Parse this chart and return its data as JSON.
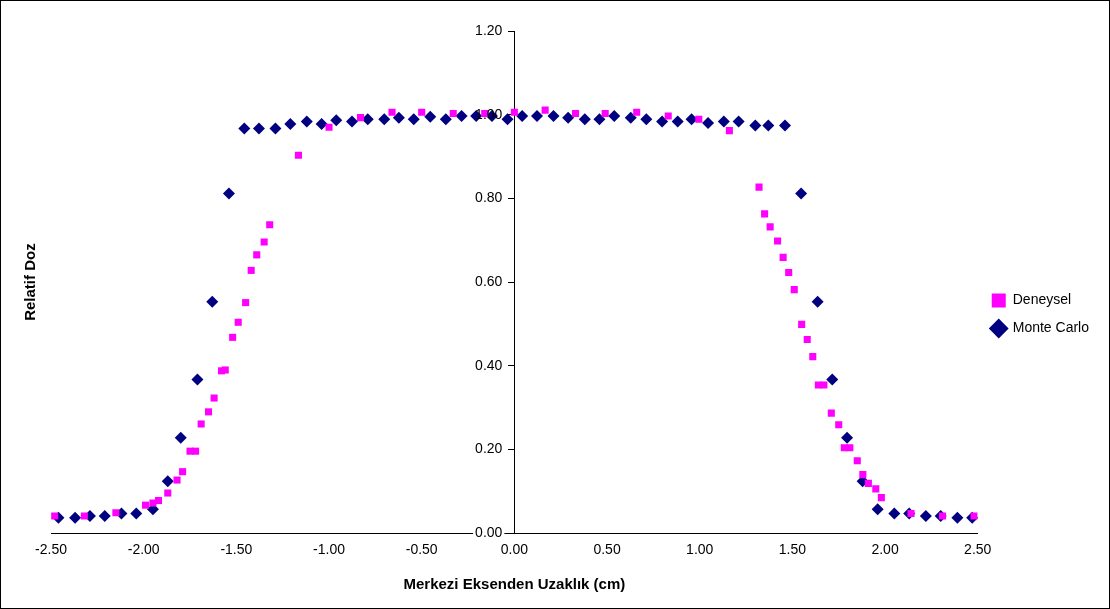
{
  "chart_data": {
    "type": "scatter",
    "xlabel": "Merkezi Eksenden Uzaklık (cm)",
    "ylabel": "Relatif Doz",
    "legend": "right",
    "grid": false,
    "xlim": [
      -2.5,
      2.5
    ],
    "ylim": [
      0,
      1.2
    ],
    "xticks": [
      {
        "value": -2.5,
        "label": "-2.50"
      },
      {
        "value": -2,
        "label": "-2.00"
      },
      {
        "value": -1.5,
        "label": "-1.50"
      },
      {
        "value": -1,
        "label": "-1.00"
      },
      {
        "value": -0.5,
        "label": "-0.50"
      },
      {
        "value": 0,
        "label": "0.00"
      },
      {
        "value": 0.5,
        "label": "0.50"
      },
      {
        "value": 1,
        "label": "1.00"
      },
      {
        "value": 1.5,
        "label": "1.50"
      },
      {
        "value": 2,
        "label": "2.00"
      },
      {
        "value": 2.5,
        "label": "2.50"
      }
    ],
    "yticks": [
      {
        "value": 0,
        "label": "0.00"
      },
      {
        "value": 0.2,
        "label": "0.20"
      },
      {
        "value": 0.4,
        "label": "0.40"
      },
      {
        "value": 0.6,
        "label": "0.60"
      },
      {
        "value": 0.8,
        "label": "0.80"
      },
      {
        "value": 1,
        "label": "1.00"
      },
      {
        "value": 1.2,
        "label": "1.20"
      }
    ],
    "series": [
      {
        "name": "Deneysel",
        "color": "#ff00ff",
        "marker": "square",
        "x": [
          -2.48,
          -2.32,
          -2.15,
          -1.99,
          -1.95,
          -1.92,
          -1.87,
          -1.82,
          -1.79,
          -1.75,
          -1.72,
          -1.69,
          -1.65,
          -1.62,
          -1.58,
          -1.56,
          -1.52,
          -1.49,
          -1.45,
          -1.42,
          -1.39,
          -1.35,
          -1.32,
          -1.165,
          -1.0,
          -0.83,
          -0.66,
          -0.5,
          -0.33,
          -0.16,
          0.0,
          0.166,
          0.33,
          0.49,
          0.66,
          0.83,
          0.995,
          1.16,
          1.32,
          1.35,
          1.38,
          1.42,
          1.45,
          1.48,
          1.51,
          1.55,
          1.58,
          1.61,
          1.64,
          1.67,
          1.71,
          1.75,
          1.78,
          1.81,
          1.85,
          1.88,
          1.91,
          1.95,
          1.98,
          2.14,
          2.31,
          2.48
        ],
        "values": [
          0.041,
          0.041,
          0.049,
          0.067,
          0.072,
          0.078,
          0.096,
          0.127,
          0.147,
          0.196,
          0.196,
          0.261,
          0.29,
          0.323,
          0.388,
          0.39,
          0.468,
          0.504,
          0.551,
          0.628,
          0.665,
          0.696,
          0.737,
          0.903,
          0.97,
          0.993,
          1.006,
          1.006,
          1.003,
          1.003,
          1.006,
          1.011,
          1.003,
          1.003,
          1.006,
          0.997,
          0.989,
          0.962,
          0.827,
          0.763,
          0.732,
          0.698,
          0.659,
          0.623,
          0.582,
          0.499,
          0.463,
          0.422,
          0.354,
          0.354,
          0.287,
          0.259,
          0.204,
          0.204,
          0.173,
          0.14,
          0.119,
          0.106,
          0.085,
          0.047,
          0.041,
          0.041
        ]
      },
      {
        "name": "Monte Carlo",
        "color": "#000080",
        "marker": "diamond",
        "x": [
          -2.46,
          -2.37,
          -2.29,
          -2.21,
          -2.12,
          -2.04,
          -1.95,
          -1.87,
          -1.8,
          -1.71,
          -1.63,
          -1.54,
          -1.457,
          -1.378,
          -1.289,
          -1.209,
          -1.12,
          -1.04,
          -0.961,
          -0.876,
          -0.791,
          -0.702,
          -0.623,
          -0.543,
          -0.454,
          -0.37,
          -0.285,
          -0.206,
          -0.121,
          -0.037,
          0.042,
          0.122,
          0.211,
          0.29,
          0.38,
          0.459,
          0.539,
          0.628,
          0.712,
          0.797,
          0.881,
          0.956,
          1.045,
          1.13,
          1.21,
          1.3,
          1.37,
          1.46,
          1.547,
          1.636,
          1.715,
          1.795,
          1.879,
          1.96,
          2.05,
          2.13,
          2.22,
          2.3,
          2.39,
          2.47
        ],
        "values": [
          0.037,
          0.037,
          0.041,
          0.041,
          0.047,
          0.047,
          0.057,
          0.124,
          0.228,
          0.367,
          0.553,
          0.812,
          0.967,
          0.967,
          0.967,
          0.978,
          0.984,
          0.978,
          0.987,
          0.984,
          0.989,
          0.989,
          0.993,
          0.989,
          0.995,
          0.989,
          0.997,
          0.997,
          0.997,
          0.989,
          0.997,
          0.997,
          0.997,
          0.993,
          0.989,
          0.989,
          0.997,
          0.993,
          0.989,
          0.984,
          0.984,
          0.989,
          0.98,
          0.984,
          0.984,
          0.974,
          0.974,
          0.974,
          0.812,
          0.553,
          0.367,
          0.228,
          0.124,
          0.057,
          0.047,
          0.047,
          0.041,
          0.041,
          0.037,
          0.037
        ]
      }
    ]
  }
}
